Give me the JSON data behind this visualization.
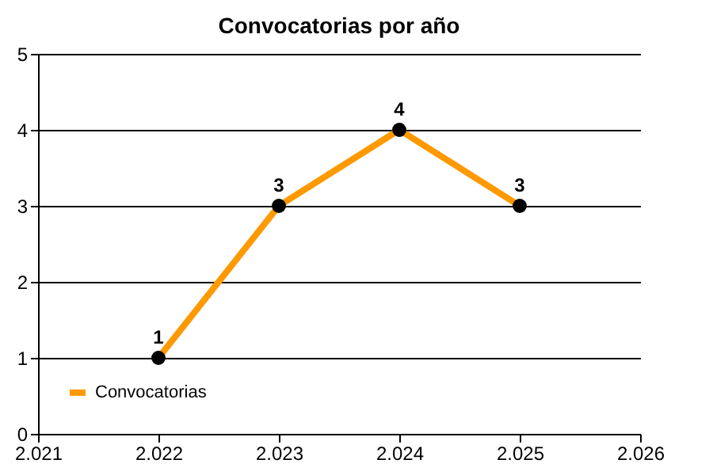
{
  "chart_data": {
    "type": "line",
    "title": "Convocatorias por año",
    "x": [
      2022,
      2023,
      2024,
      2025
    ],
    "series": [
      {
        "name": "Convocatorias",
        "color": "#ff9900",
        "values": [
          1,
          3,
          4,
          3
        ]
      }
    ],
    "xlim": [
      2021,
      2026
    ],
    "xticks": [
      {
        "value": 2021,
        "label": "2.021"
      },
      {
        "value": 2022,
        "label": "2.022"
      },
      {
        "value": 2023,
        "label": "2.023"
      },
      {
        "value": 2024,
        "label": "2.024"
      },
      {
        "value": 2025,
        "label": "2.025"
      },
      {
        "value": 2026,
        "label": "2.026"
      }
    ],
    "ylim": [
      0,
      5
    ],
    "yticks": [
      0,
      1,
      2,
      3,
      4,
      5
    ],
    "grid": "y",
    "legend": "bottom left",
    "marker": "circle",
    "line_style": "solid",
    "data_labels": true
  }
}
